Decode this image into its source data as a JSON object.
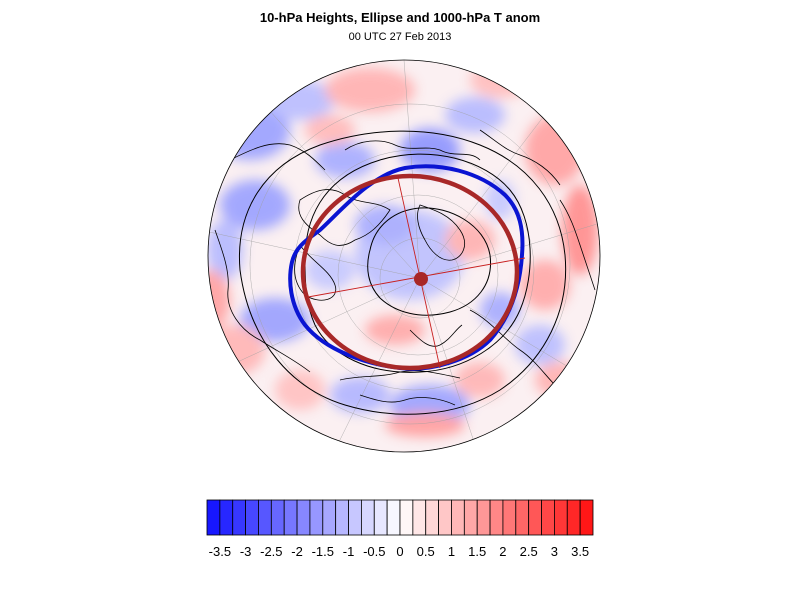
{
  "title": "10-hPa Heights, Ellipse and 1000-hPa T anom",
  "subtitle": "00 UTC 27 Feb 2013",
  "colorbar": {
    "labels": [
      "-3.5",
      "-3",
      "-2.5",
      "-2",
      "-1.5",
      "-1",
      "-0.5",
      "0",
      "0.5",
      "1",
      "1.5",
      "2",
      "2.5",
      "3",
      "3.5"
    ],
    "min": -3.75,
    "max": 3.75,
    "step": 0.25
  },
  "colors": {
    "cold_extreme": "#1010ff",
    "warm_extreme": "#ff1010",
    "vortex_contour": "#0a14d2",
    "ellipse": "#a82828",
    "height_contours": "#000000",
    "coastlines": "#000000"
  }
}
